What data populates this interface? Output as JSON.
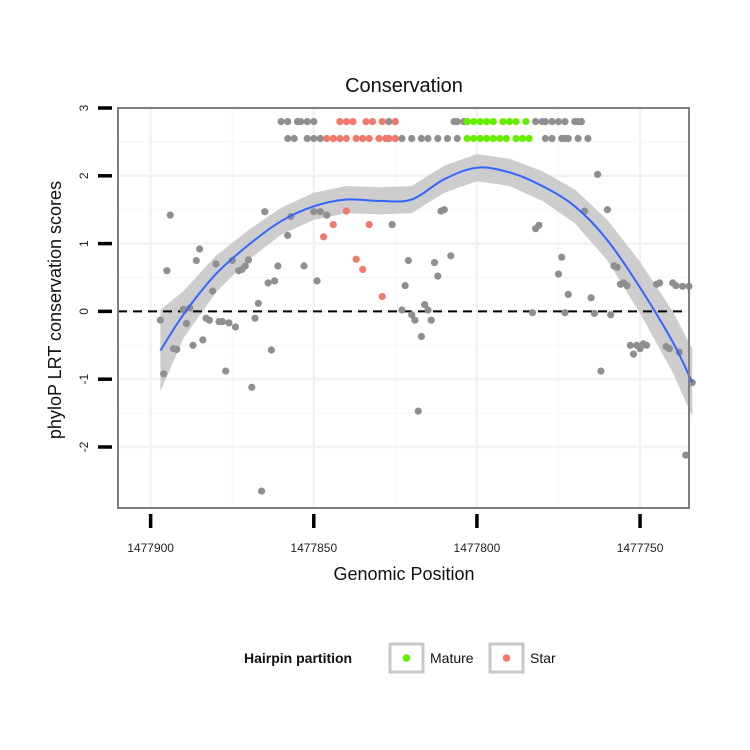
{
  "chart_data": {
    "type": "scatter",
    "title": "Conservation",
    "xlabel": "Genomic Position",
    "ylabel": "phyloP LRT conservation scores",
    "xlim": [
      1477910,
      1477735
    ],
    "ylim": [
      -2.9,
      3.0
    ],
    "x_reversed": true,
    "x_ticks": [
      1477900,
      1477850,
      1477800,
      1477750
    ],
    "x_tick_labels": [
      "1477900",
      "1477850",
      "1477800",
      "1477750"
    ],
    "y_ticks": [
      -2,
      -1,
      0,
      1,
      2,
      3
    ],
    "y_tick_labels": [
      "-2",
      "-1",
      "0",
      "1",
      "2",
      "3"
    ],
    "grid": true,
    "reference_line": {
      "y": 0,
      "style": "dashed",
      "color": "#000000"
    },
    "colors": {
      "other": "#8f8f8f",
      "Mature": "#66ee00",
      "Star": "#f07a6e",
      "smooth": "#3366ff",
      "ribbon": "#c8c8c8",
      "frame": "#7f7f7f"
    },
    "legend": {
      "title": "Hairpin partition",
      "placement": "bottom",
      "entries": [
        {
          "label": "Mature",
          "color": "#66ee00"
        },
        {
          "label": "Star",
          "color": "#f07a6e"
        }
      ]
    },
    "series": [
      {
        "name": "",
        "color": "#8f8f8f",
        "points": [
          [
            1477897,
            -0.13
          ],
          [
            1477896,
            -0.92
          ],
          [
            1477895,
            0.6
          ],
          [
            1477894,
            1.42
          ],
          [
            1477893,
            -0.55
          ],
          [
            1477892,
            -0.56
          ],
          [
            1477890,
            0.03
          ],
          [
            1477889,
            -0.18
          ],
          [
            1477888,
            0.05
          ],
          [
            1477887,
            -0.5
          ],
          [
            1477886,
            0.75
          ],
          [
            1477885,
            0.92
          ],
          [
            1477884,
            -0.42
          ],
          [
            1477883,
            -0.1
          ],
          [
            1477882,
            -0.13
          ],
          [
            1477881,
            0.3
          ],
          [
            1477880,
            0.7
          ],
          [
            1477879,
            -0.15
          ],
          [
            1477878,
            -0.15
          ],
          [
            1477877,
            -0.88
          ],
          [
            1477876,
            -0.17
          ],
          [
            1477875,
            0.75
          ],
          [
            1477874,
            -0.23
          ],
          [
            1477873,
            0.6
          ],
          [
            1477872,
            0.62
          ],
          [
            1477871,
            0.67
          ],
          [
            1477870,
            0.76
          ],
          [
            1477869,
            -1.12
          ],
          [
            1477868,
            -0.1
          ],
          [
            1477867,
            0.12
          ],
          [
            1477866,
            -2.65
          ],
          [
            1477865,
            1.47
          ],
          [
            1477864,
            0.42
          ],
          [
            1477863,
            -0.57
          ],
          [
            1477862,
            0.45
          ],
          [
            1477861,
            0.67
          ],
          [
            1477860,
            2.8
          ],
          [
            1477858,
            2.8
          ],
          [
            1477858,
            1.12
          ],
          [
            1477857,
            1.4
          ],
          [
            1477855,
            2.8
          ],
          [
            1477854,
            2.8
          ],
          [
            1477853,
            0.67
          ],
          [
            1477852,
            2.8
          ],
          [
            1477850,
            2.8
          ],
          [
            1477850,
            1.47
          ],
          [
            1477849,
            0.45
          ],
          [
            1477848,
            1.47
          ],
          [
            1477846,
            1.42
          ],
          [
            1477827,
            2.8
          ],
          [
            1477826,
            1.28
          ],
          [
            1477825,
            2.8
          ],
          [
            1477823,
            0.02
          ],
          [
            1477822,
            0.38
          ],
          [
            1477821,
            0.75
          ],
          [
            1477820,
            -0.05
          ],
          [
            1477819,
            -0.13
          ],
          [
            1477818,
            -1.47
          ],
          [
            1477817,
            -0.37
          ],
          [
            1477816,
            0.1
          ],
          [
            1477815,
            0.02
          ],
          [
            1477814,
            -0.13
          ],
          [
            1477813,
            0.72
          ],
          [
            1477812,
            0.52
          ],
          [
            1477811,
            1.48
          ],
          [
            1477810,
            1.5
          ],
          [
            1477808,
            0.82
          ],
          [
            1477807,
            2.8
          ],
          [
            1477783,
            -0.02
          ],
          [
            1477782,
            1.22
          ],
          [
            1477781,
            1.27
          ],
          [
            1477780,
            2.8
          ],
          [
            1477777,
            2.8
          ],
          [
            1477775,
            0.55
          ],
          [
            1477774,
            0.8
          ],
          [
            1477773,
            -0.02
          ],
          [
            1477772,
            0.25
          ],
          [
            1477770,
            2.8
          ],
          [
            1477768,
            2.8
          ],
          [
            1477767,
            1.48
          ],
          [
            1477765,
            0.2
          ],
          [
            1477764,
            -0.03
          ],
          [
            1477763,
            2.02
          ],
          [
            1477762,
            -0.88
          ],
          [
            1477760,
            1.5
          ],
          [
            1477759,
            -0.05
          ],
          [
            1477758,
            0.67
          ],
          [
            1477757,
            0.65
          ],
          [
            1477756,
            0.4
          ],
          [
            1477755,
            0.42
          ],
          [
            1477754,
            0.38
          ],
          [
            1477753,
            -0.5
          ],
          [
            1477752,
            -0.63
          ],
          [
            1477751,
            -0.5
          ],
          [
            1477750,
            -0.55
          ],
          [
            1477749,
            -0.48
          ],
          [
            1477748,
            -0.5
          ],
          [
            1477745,
            0.4
          ],
          [
            1477744,
            0.42
          ],
          [
            1477742,
            -0.52
          ],
          [
            1477741,
            -0.55
          ],
          [
            1477740,
            0.42
          ],
          [
            1477739,
            0.38
          ],
          [
            1477738,
            -0.6
          ],
          [
            1477737,
            0.37
          ],
          [
            1477736,
            -2.12
          ],
          [
            1477735,
            0.37
          ],
          [
            1477734,
            -1.05
          ],
          [
            1477858,
            2.55
          ],
          [
            1477856,
            2.55
          ],
          [
            1477852,
            2.55
          ],
          [
            1477850,
            2.55
          ],
          [
            1477848,
            2.55
          ],
          [
            1477827,
            2.55
          ],
          [
            1477825,
            2.55
          ],
          [
            1477823,
            2.55
          ],
          [
            1477820,
            2.55
          ],
          [
            1477817,
            2.55
          ],
          [
            1477815,
            2.55
          ],
          [
            1477812,
            2.55
          ],
          [
            1477809,
            2.55
          ],
          [
            1477806,
            2.55
          ],
          [
            1477779,
            2.55
          ],
          [
            1477777,
            2.55
          ],
          [
            1477774,
            2.55
          ],
          [
            1477773,
            2.55
          ],
          [
            1477772,
            2.55
          ],
          [
            1477769,
            2.55
          ],
          [
            1477766,
            2.55
          ],
          [
            1477806,
            2.8
          ],
          [
            1477803,
            2.8
          ],
          [
            1477804,
            2.8
          ],
          [
            1477782,
            2.8
          ],
          [
            1477779,
            2.8
          ],
          [
            1477775,
            2.8
          ],
          [
            1477773,
            2.8
          ],
          [
            1477768,
            2.8
          ],
          [
            1477769,
            2.8
          ]
        ]
      },
      {
        "name": "Star",
        "color": "#f07a6e",
        "points": [
          [
            1477846,
            2.55
          ],
          [
            1477844,
            2.55
          ],
          [
            1477842,
            2.55
          ],
          [
            1477840,
            2.55
          ],
          [
            1477837,
            2.55
          ],
          [
            1477835,
            2.55
          ],
          [
            1477833,
            2.55
          ],
          [
            1477830,
            2.55
          ],
          [
            1477828,
            2.55
          ],
          [
            1477827,
            2.55
          ],
          [
            1477825,
            2.55
          ],
          [
            1477842,
            2.8
          ],
          [
            1477840,
            2.8
          ],
          [
            1477838,
            2.8
          ],
          [
            1477834,
            2.8
          ],
          [
            1477832,
            2.8
          ],
          [
            1477829,
            2.8
          ],
          [
            1477825,
            2.8
          ],
          [
            1477847,
            1.1
          ],
          [
            1477844,
            1.28
          ],
          [
            1477840,
            1.48
          ],
          [
            1477837,
            0.77
          ],
          [
            1477835,
            0.62
          ],
          [
            1477833,
            1.28
          ],
          [
            1477829,
            0.22
          ]
        ]
      },
      {
        "name": "Mature",
        "color": "#66ee00",
        "points": [
          [
            1477803,
            2.55
          ],
          [
            1477801,
            2.55
          ],
          [
            1477799,
            2.55
          ],
          [
            1477797,
            2.55
          ],
          [
            1477795,
            2.55
          ],
          [
            1477793,
            2.55
          ],
          [
            1477791,
            2.55
          ],
          [
            1477788,
            2.55
          ],
          [
            1477786,
            2.55
          ],
          [
            1477784,
            2.55
          ],
          [
            1477803,
            2.8
          ],
          [
            1477801,
            2.8
          ],
          [
            1477799,
            2.8
          ],
          [
            1477797,
            2.8
          ],
          [
            1477795,
            2.8
          ],
          [
            1477792,
            2.8
          ],
          [
            1477790,
            2.8
          ],
          [
            1477788,
            2.8
          ],
          [
            1477785,
            2.8
          ]
        ]
      }
    ],
    "smooth": {
      "color": "#3366ff",
      "points": [
        [
          1477897,
          -0.58
        ],
        [
          1477890,
          -0.05
        ],
        [
          1477880,
          0.55
        ],
        [
          1477870,
          0.98
        ],
        [
          1477860,
          1.33
        ],
        [
          1477850,
          1.55
        ],
        [
          1477840,
          1.65
        ],
        [
          1477830,
          1.63
        ],
        [
          1477820,
          1.65
        ],
        [
          1477810,
          1.95
        ],
        [
          1477800,
          2.12
        ],
        [
          1477790,
          2.05
        ],
        [
          1477780,
          1.85
        ],
        [
          1477770,
          1.55
        ],
        [
          1477760,
          1.05
        ],
        [
          1477750,
          0.35
        ],
        [
          1477740,
          -0.45
        ],
        [
          1477734,
          -1.05
        ]
      ],
      "band_halfwidth": [
        0.6,
        0.35,
        0.27,
        0.22,
        0.2,
        0.2,
        0.2,
        0.2,
        0.2,
        0.2,
        0.2,
        0.2,
        0.22,
        0.25,
        0.3,
        0.38,
        0.45,
        0.5
      ]
    }
  }
}
